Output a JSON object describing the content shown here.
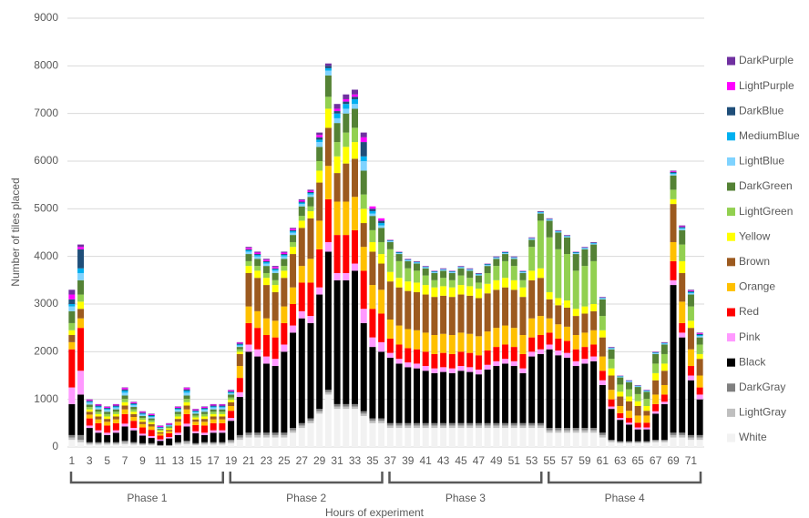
{
  "chart_data": {
    "type": "stacked_bar",
    "ylabel": "Number of tiles placed",
    "xlabel": "Hours of experiment",
    "categories": [
      1,
      null,
      3,
      null,
      5,
      null,
      7,
      null,
      9,
      null,
      11,
      null,
      13,
      null,
      15,
      null,
      17,
      null,
      19,
      null,
      21,
      null,
      23,
      null,
      25,
      null,
      27,
      null,
      29,
      null,
      31,
      null,
      33,
      null,
      35,
      null,
      37,
      null,
      39,
      null,
      41,
      null,
      43,
      null,
      45,
      null,
      47,
      null,
      49,
      null,
      51,
      null,
      53,
      null,
      55,
      null,
      57,
      null,
      59,
      null,
      61,
      null,
      63,
      null,
      65,
      null,
      67,
      null,
      69,
      null,
      71,
      null
    ],
    "phases": [
      "Phase 1",
      "Phase 2",
      "Phase 3",
      "Phase 4"
    ],
    "ylim": [
      0,
      9000
    ],
    "yticks": [
      0,
      1000,
      2000,
      3000,
      4000,
      5000,
      6000,
      7000,
      8000,
      9000
    ],
    "grid": true,
    "legend": "right",
    "series": [
      {
        "name": "White",
        "color": "#f2f2f2",
        "values": [
          150,
          100,
          50,
          50,
          50,
          50,
          60,
          50,
          40,
          40,
          20,
          20,
          50,
          60,
          40,
          50,
          50,
          50,
          80,
          150,
          200,
          200,
          200,
          200,
          200,
          300,
          400,
          500,
          700,
          1100,
          800,
          800,
          800,
          650,
          500,
          500,
          400,
          400,
          400,
          400,
          400,
          400,
          400,
          400,
          400,
          400,
          400,
          400,
          400,
          400,
          400,
          400,
          400,
          400,
          300,
          300,
          300,
          300,
          300,
          300,
          200,
          100,
          80,
          80,
          80,
          80,
          100,
          100,
          200,
          200,
          150,
          150
        ]
      },
      {
        "name": "LightGray",
        "color": "#bfbfbf",
        "values": [
          50,
          50,
          30,
          30,
          30,
          30,
          40,
          30,
          20,
          20,
          10,
          10,
          30,
          40,
          20,
          30,
          30,
          30,
          40,
          50,
          50,
          50,
          50,
          50,
          50,
          50,
          50,
          50,
          50,
          50,
          50,
          50,
          50,
          50,
          50,
          50,
          50,
          50,
          50,
          50,
          50,
          50,
          50,
          50,
          50,
          50,
          50,
          50,
          50,
          50,
          50,
          50,
          50,
          50,
          50,
          50,
          50,
          50,
          50,
          50,
          50,
          30,
          20,
          20,
          20,
          20,
          30,
          30,
          50,
          50,
          50,
          50
        ]
      },
      {
        "name": "DarkGray",
        "color": "#7f7f7f",
        "values": [
          50,
          100,
          20,
          20,
          20,
          20,
          30,
          20,
          20,
          20,
          10,
          10,
          20,
          30,
          20,
          20,
          20,
          20,
          30,
          50,
          50,
          50,
          50,
          50,
          50,
          50,
          50,
          50,
          50,
          50,
          50,
          50,
          50,
          50,
          50,
          50,
          50,
          50,
          50,
          50,
          50,
          50,
          50,
          50,
          50,
          50,
          50,
          50,
          50,
          50,
          50,
          50,
          50,
          50,
          50,
          50,
          50,
          50,
          50,
          50,
          50,
          20,
          20,
          20,
          20,
          20,
          20,
          20,
          50,
          50,
          50,
          50
        ]
      },
      {
        "name": "Black",
        "color": "#000000",
        "values": [
          650,
          850,
          300,
          200,
          150,
          200,
          300,
          250,
          160,
          110,
          90,
          140,
          150,
          300,
          210,
          150,
          200,
          200,
          400,
          800,
          1700,
          1600,
          1450,
          1400,
          1700,
          2000,
          2200,
          2000,
          2400,
          2900,
          2600,
          2600,
          2800,
          1850,
          1500,
          1400,
          1375,
          1250,
          1175,
          1150,
          1100,
          1050,
          1075,
          1050,
          1100,
          1075,
          1025,
          1125,
          1200,
          1250,
          1200,
          1050,
          1400,
          1450,
          1650,
          1525,
          1475,
          1300,
          1350,
          1400,
          1000,
          650,
          450,
          350,
          250,
          250,
          550,
          750,
          3100,
          2000,
          1150,
          750
        ]
      },
      {
        "name": "Pink",
        "color": "#ff99ff",
        "values": [
          350,
          500,
          50,
          50,
          50,
          50,
          60,
          50,
          40,
          40,
          30,
          30,
          50,
          60,
          40,
          50,
          50,
          50,
          60,
          100,
          150,
          150,
          150,
          150,
          150,
          150,
          150,
          150,
          150,
          200,
          150,
          150,
          150,
          300,
          200,
          200,
          100,
          100,
          100,
          100,
          100,
          100,
          100,
          100,
          100,
          100,
          100,
          100,
          100,
          100,
          100,
          100,
          100,
          100,
          100,
          100,
          100,
          100,
          100,
          100,
          100,
          50,
          40,
          40,
          40,
          40,
          50,
          50,
          100,
          100,
          100,
          100
        ]
      },
      {
        "name": "Red",
        "color": "#ff0000",
        "values": [
          800,
          900,
          150,
          150,
          150,
          150,
          200,
          150,
          130,
          130,
          80,
          80,
          150,
          200,
          130,
          150,
          150,
          150,
          150,
          300,
          450,
          450,
          450,
          450,
          450,
          450,
          600,
          700,
          800,
          900,
          800,
          800,
          700,
          800,
          600,
          600,
          300,
          300,
          300,
          300,
          300,
          300,
          300,
          300,
          300,
          300,
          300,
          300,
          300,
          300,
          300,
          300,
          300,
          300,
          250,
          250,
          250,
          250,
          250,
          250,
          200,
          150,
          100,
          100,
          100,
          100,
          150,
          150,
          400,
          200,
          200,
          150
        ]
      },
      {
        "name": "Orange",
        "color": "#ffc000",
        "values": [
          150,
          200,
          80,
          80,
          80,
          80,
          100,
          80,
          70,
          70,
          40,
          40,
          80,
          100,
          70,
          80,
          80,
          80,
          100,
          250,
          350,
          350,
          350,
          350,
          350,
          350,
          350,
          500,
          600,
          700,
          700,
          700,
          700,
          500,
          500,
          500,
          400,
          400,
          400,
          400,
          400,
          400,
          400,
          400,
          400,
          400,
          400,
          400,
          400,
          400,
          400,
          400,
          400,
          400,
          300,
          300,
          300,
          300,
          300,
          300,
          300,
          200,
          150,
          150,
          150,
          150,
          200,
          200,
          400,
          450,
          350,
          250
        ]
      },
      {
        "name": "Brown",
        "color": "#9c5a1f",
        "values": [
          150,
          200,
          60,
          60,
          60,
          60,
          80,
          60,
          50,
          50,
          30,
          30,
          60,
          80,
          50,
          60,
          60,
          60,
          80,
          250,
          700,
          700,
          700,
          600,
          600,
          700,
          800,
          850,
          800,
          800,
          600,
          800,
          800,
          500,
          700,
          550,
          800,
          800,
          800,
          800,
          800,
          800,
          800,
          800,
          800,
          800,
          800,
          800,
          800,
          800,
          800,
          800,
          800,
          800,
          400,
          400,
          400,
          400,
          400,
          400,
          400,
          300,
          200,
          200,
          200,
          100,
          300,
          300,
          800,
          600,
          450,
          350
        ]
      },
      {
        "name": "Yellow",
        "color": "#ffff00",
        "values": [
          100,
          150,
          50,
          50,
          50,
          50,
          70,
          50,
          40,
          40,
          30,
          30,
          50,
          70,
          40,
          50,
          50,
          50,
          50,
          50,
          150,
          150,
          150,
          150,
          150,
          150,
          150,
          150,
          250,
          400,
          350,
          350,
          350,
          300,
          200,
          200,
          200,
          200,
          200,
          200,
          200,
          200,
          200,
          200,
          200,
          200,
          200,
          200,
          200,
          200,
          200,
          200,
          200,
          200,
          150,
          150,
          150,
          150,
          150,
          150,
          150,
          150,
          100,
          100,
          100,
          100,
          150,
          150,
          100,
          250,
          150,
          100
        ]
      },
      {
        "name": "LightGreen",
        "color": "#92d050",
        "values": [
          150,
          150,
          50,
          50,
          50,
          50,
          70,
          50,
          40,
          40,
          20,
          20,
          50,
          70,
          40,
          50,
          50,
          50,
          50,
          50,
          100,
          100,
          100,
          100,
          100,
          100,
          100,
          100,
          200,
          250,
          300,
          300,
          300,
          300,
          250,
          250,
          475,
          350,
          275,
          250,
          200,
          150,
          175,
          150,
          200,
          175,
          125,
          225,
          300,
          350,
          300,
          150,
          500,
          1000,
          1150,
          1025,
          975,
          800,
          850,
          900,
          300,
          200,
          150,
          150,
          150,
          150,
          200,
          200,
          200,
          350,
          300,
          200
        ]
      },
      {
        "name": "DarkGreen",
        "color": "#548235",
        "values": [
          250,
          300,
          50,
          50,
          50,
          50,
          70,
          50,
          40,
          40,
          20,
          20,
          50,
          70,
          40,
          50,
          50,
          50,
          60,
          50,
          150,
          150,
          150,
          150,
          150,
          150,
          200,
          200,
          300,
          450,
          400,
          400,
          400,
          500,
          300,
          300,
          150,
          150,
          150,
          150,
          150,
          150,
          150,
          150,
          150,
          150,
          150,
          150,
          150,
          150,
          150,
          150,
          150,
          150,
          350,
          350,
          350,
          350,
          350,
          350,
          350,
          200,
          150,
          150,
          150,
          150,
          200,
          200,
          300,
          300,
          250,
          150
        ]
      },
      {
        "name": "LightBlue",
        "color": "#7fd3ff",
        "values": [
          100,
          150,
          40,
          40,
          40,
          40,
          60,
          40,
          30,
          30,
          20,
          20,
          40,
          60,
          30,
          40,
          40,
          40,
          30,
          30,
          50,
          50,
          50,
          50,
          50,
          50,
          50,
          50,
          100,
          100,
          100,
          100,
          100,
          200,
          50,
          50,
          20,
          20,
          20,
          20,
          20,
          20,
          20,
          20,
          20,
          20,
          20,
          20,
          20,
          20,
          20,
          20,
          20,
          20,
          20,
          20,
          20,
          20,
          20,
          20,
          20,
          20,
          15,
          15,
          15,
          15,
          20,
          20,
          30,
          30,
          30,
          30
        ]
      },
      {
        "name": "MediumBlue",
        "color": "#00b0f0",
        "values": [
          50,
          100,
          20,
          20,
          20,
          20,
          40,
          20,
          20,
          20,
          10,
          10,
          20,
          40,
          20,
          20,
          20,
          20,
          20,
          20,
          30,
          30,
          30,
          30,
          30,
          30,
          30,
          30,
          50,
          50,
          100,
          100,
          100,
          100,
          50,
          50,
          10,
          10,
          10,
          10,
          10,
          10,
          10,
          10,
          10,
          10,
          10,
          10,
          10,
          10,
          10,
          10,
          10,
          10,
          10,
          10,
          10,
          10,
          10,
          10,
          10,
          10,
          10,
          10,
          10,
          10,
          10,
          10,
          20,
          20,
          20,
          20
        ]
      },
      {
        "name": "DarkBlue",
        "color": "#1f4e79",
        "values": [
          100,
          400,
          20,
          20,
          20,
          20,
          30,
          20,
          20,
          20,
          10,
          10,
          20,
          30,
          20,
          20,
          20,
          20,
          20,
          20,
          20,
          20,
          20,
          20,
          20,
          20,
          20,
          20,
          50,
          50,
          50,
          50,
          50,
          300,
          50,
          50,
          10,
          10,
          10,
          10,
          10,
          10,
          10,
          10,
          10,
          10,
          10,
          10,
          10,
          10,
          10,
          10,
          10,
          10,
          10,
          10,
          10,
          10,
          10,
          10,
          10,
          10,
          5,
          5,
          5,
          5,
          10,
          10,
          20,
          20,
          20,
          20
        ]
      },
      {
        "name": "LightPurple",
        "color": "#ff00ff",
        "values": [
          100,
          50,
          20,
          20,
          20,
          20,
          30,
          20,
          20,
          20,
          20,
          20,
          20,
          30,
          20,
          20,
          20,
          20,
          20,
          20,
          30,
          30,
          30,
          30,
          30,
          30,
          30,
          30,
          50,
          0,
          50,
          50,
          50,
          100,
          50,
          50,
          5,
          5,
          5,
          5,
          5,
          5,
          5,
          5,
          5,
          5,
          5,
          5,
          5,
          5,
          5,
          5,
          5,
          5,
          5,
          5,
          5,
          5,
          5,
          5,
          5,
          5,
          5,
          5,
          5,
          5,
          5,
          5,
          15,
          15,
          15,
          15
        ]
      },
      {
        "name": "DarkPurple",
        "color": "#7030a0",
        "values": [
          100,
          50,
          10,
          10,
          10,
          10,
          10,
          10,
          10,
          10,
          10,
          10,
          10,
          10,
          10,
          10,
          10,
          10,
          10,
          10,
          20,
          20,
          20,
          20,
          20,
          20,
          20,
          20,
          50,
          50,
          100,
          100,
          100,
          100,
          0,
          0,
          5,
          5,
          5,
          5,
          5,
          5,
          5,
          5,
          5,
          5,
          5,
          5,
          5,
          5,
          5,
          5,
          5,
          5,
          5,
          5,
          5,
          5,
          5,
          5,
          5,
          5,
          5,
          5,
          5,
          5,
          5,
          5,
          15,
          15,
          15,
          15
        ]
      }
    ]
  }
}
